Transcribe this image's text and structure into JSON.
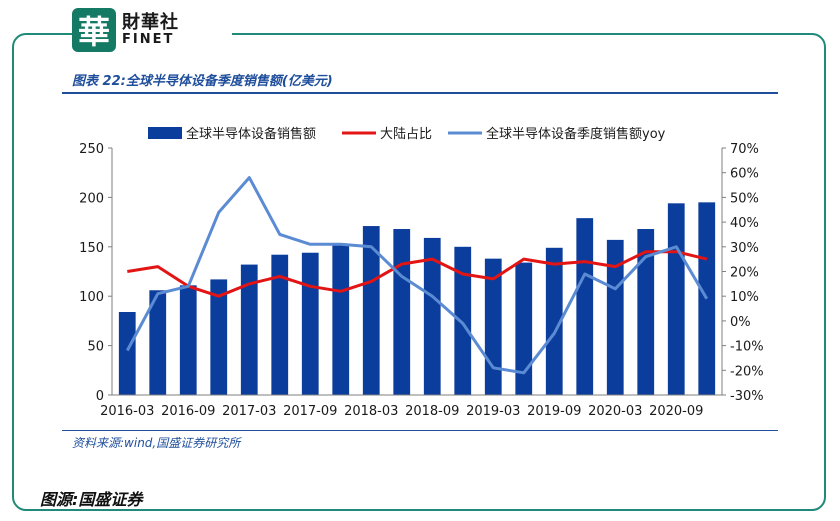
{
  "brand": {
    "logo_char": "華",
    "name_cn": "財華社",
    "name_en": "FINET"
  },
  "figure": {
    "title": "图表 22:全球半导体设备季度销售额(亿美元)",
    "source": "资料来源:wind,国盛证券研究所"
  },
  "image_source": "图源:国盛证券",
  "colors": {
    "bar": "#0b3d9c",
    "share_line": "#e31414",
    "yoy_line": "#5b8bd3",
    "frame": "#1f8a78"
  },
  "chart_data": {
    "type": "bar",
    "categories": [
      "2016-03",
      "2016-06",
      "2016-09",
      "2016-12",
      "2017-03",
      "2017-06",
      "2017-09",
      "2017-12",
      "2018-03",
      "2018-06",
      "2018-09",
      "2018-12",
      "2019-03",
      "2019-06",
      "2019-09",
      "2019-12",
      "2020-03",
      "2020-06",
      "2020-09",
      "2020-12"
    ],
    "tick_labels": [
      "2016-03",
      "2016-09",
      "2017-03",
      "2017-09",
      "2018-03",
      "2018-09",
      "2019-03",
      "2019-09",
      "2020-03",
      "2020-09"
    ],
    "series": [
      {
        "name": "全球半导体设备销售额",
        "type": "bar",
        "axis": "left",
        "values": [
          84,
          106,
          111,
          117,
          132,
          142,
          144,
          152,
          171,
          168,
          159,
          150,
          138,
          134,
          149,
          179,
          157,
          168,
          194,
          195
        ]
      },
      {
        "name": "大陆占比",
        "type": "line",
        "axis": "right",
        "values": [
          20,
          22,
          14,
          10,
          15,
          18,
          14,
          12,
          16,
          23,
          25,
          19,
          17,
          25,
          23,
          24,
          22,
          28,
          28,
          25
        ]
      },
      {
        "name": "全球半导体设备季度销售额yoy",
        "type": "line",
        "axis": "right",
        "values": [
          -12,
          11,
          14,
          44,
          58,
          35,
          31,
          31,
          30,
          18,
          10,
          -1,
          -19,
          -21,
          -5,
          19,
          13,
          26,
          30,
          9
        ]
      }
    ],
    "left_axis": {
      "ylim": [
        0,
        250
      ],
      "ticks": [
        "0",
        "50",
        "100",
        "150",
        "200",
        "250"
      ]
    },
    "right_axis": {
      "ylim": [
        -30,
        70
      ],
      "ticks": [
        "-30%",
        "-20%",
        "-10%",
        "0%",
        "10%",
        "20%",
        "30%",
        "40%",
        "50%",
        "60%",
        "70%"
      ]
    },
    "legend_position": "top",
    "grid": false
  }
}
